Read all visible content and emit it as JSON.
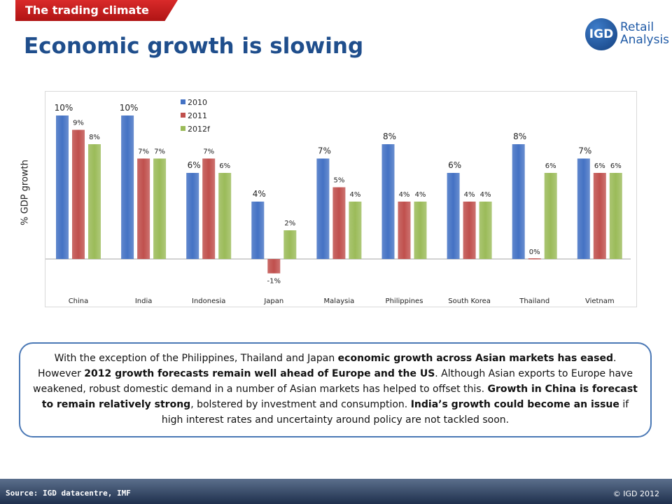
{
  "header": {
    "section_tab": "The trading climate",
    "title": "Economic growth is slowing"
  },
  "logo": {
    "mark": "IGD",
    "line1": "Retail",
    "line2": "Analysis"
  },
  "colors": {
    "series_2010": "#4472c4",
    "series_2011": "#c0504d",
    "series_2012f": "#9bbb59",
    "title": "#1f4e8c",
    "tab": "#c41e1e"
  },
  "chart_data": {
    "type": "bar",
    "ylabel": "% GDP growth",
    "categories": [
      "China",
      "India",
      "Indonesia",
      "Japan",
      "Malaysia",
      "Philippines",
      "South Korea",
      "Thailand",
      "Vietnam"
    ],
    "series": [
      {
        "name": "2010",
        "values": [
          10,
          10,
          6,
          4,
          7,
          8,
          6,
          8,
          7
        ],
        "labels": [
          "10%",
          "10%",
          "6%",
          "4%",
          "7%",
          "8%",
          "6%",
          "8%",
          "7%"
        ]
      },
      {
        "name": "2011",
        "values": [
          9,
          7,
          7,
          -1,
          5,
          4,
          4,
          0,
          6
        ],
        "labels": [
          "9%",
          "7%",
          "7%",
          "-1%",
          "5%",
          "4%",
          "4%",
          "0%",
          "6%"
        ]
      },
      {
        "name": "2012f",
        "values": [
          8,
          7,
          6,
          2,
          4,
          4,
          4,
          6,
          6
        ],
        "labels": [
          "8%",
          "7%",
          "6%",
          "2%",
          "4%",
          "4%",
          "4%",
          "6%",
          "6%"
        ]
      }
    ],
    "legend": "top-left",
    "grid": false
  },
  "summary": {
    "p1": "With the exception of the Philippines, Thailand and Japan ",
    "b1": "economic growth across Asian markets has eased",
    "p2": ". However ",
    "b2": "2012 growth forecasts remain well ahead of Europe and the US",
    "p3": ".  Although Asian exports to Europe have weakened, robust domestic demand in a number of Asian markets has helped to offset this.  ",
    "b3": "Growth in China is forecast to remain relatively strong",
    "p4": ", bolstered by investment and consumption.  ",
    "b4": "India’s growth could become an issue",
    "p5": " if high interest rates and uncertainty  around policy are not tackled soon."
  },
  "footer": {
    "source": "Source: IGD datacentre, IMF",
    "copyright": "© IGD 2012"
  }
}
